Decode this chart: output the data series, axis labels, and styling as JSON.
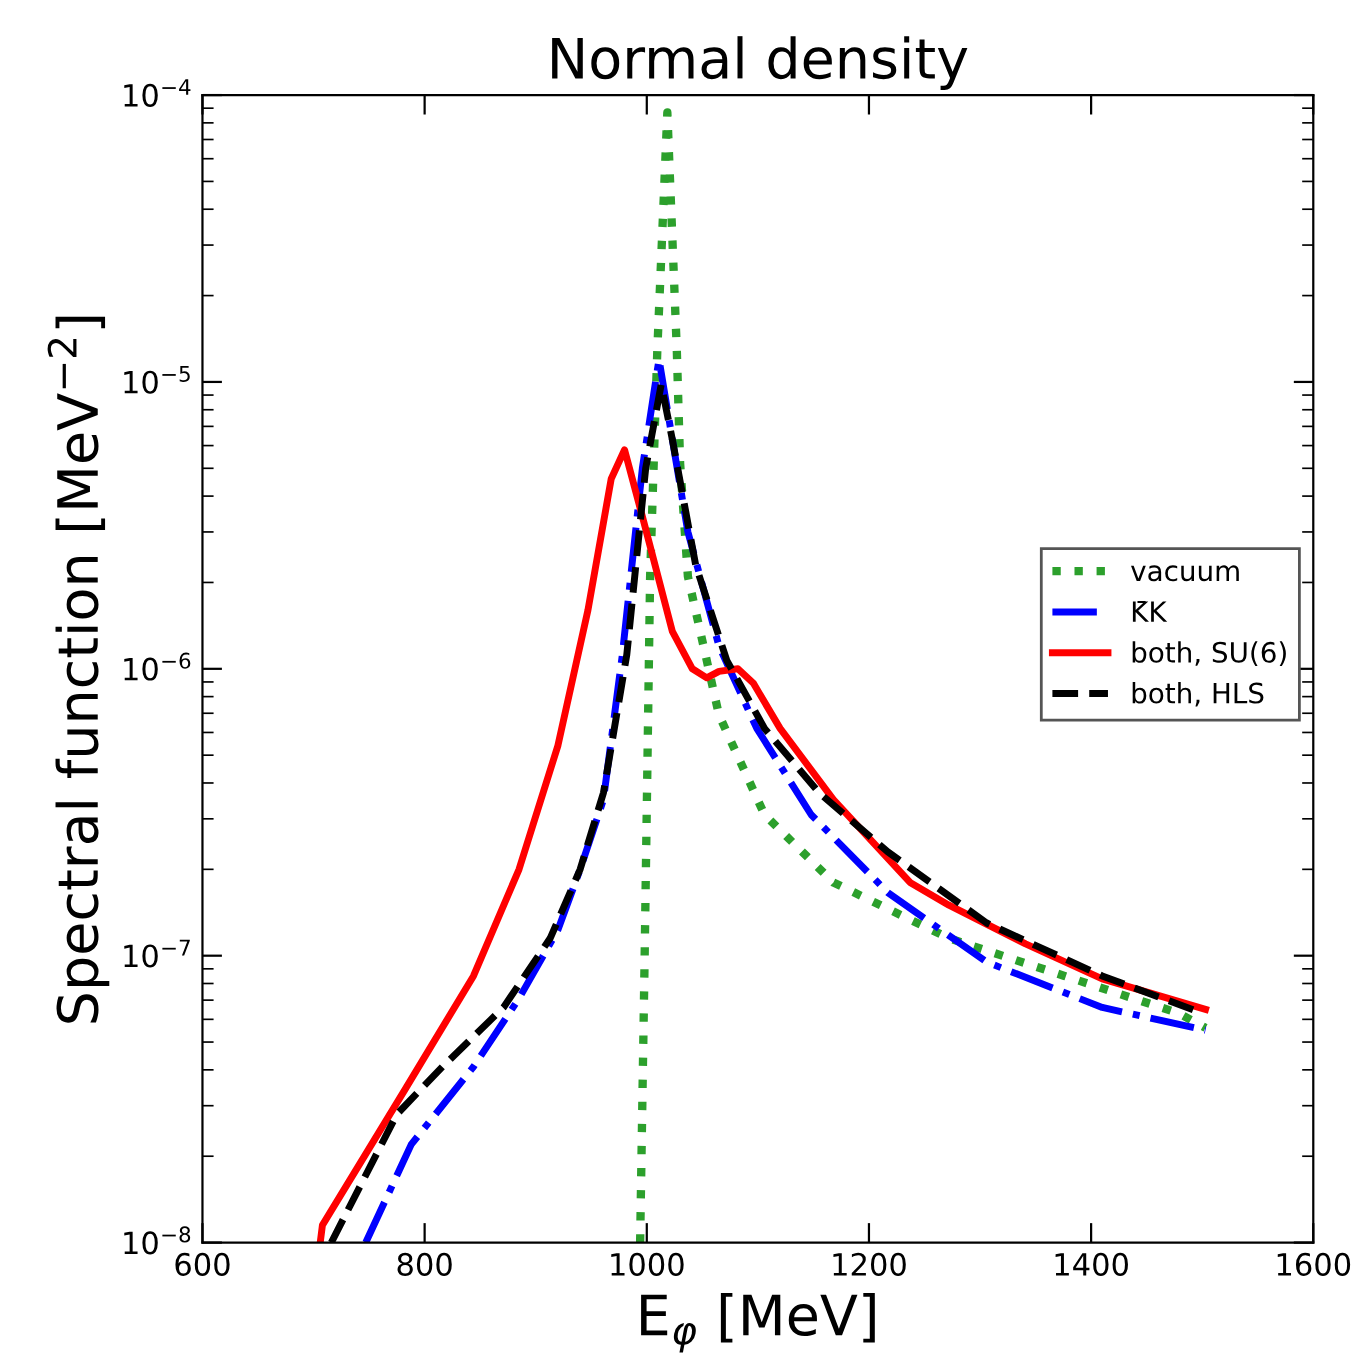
{
  "chart_data": {
    "type": "line",
    "title": "Normal density",
    "xlabel": "E$_{φ}$ [MeV]",
    "ylabel": "Spectral function [MeV$^{−2}$]",
    "log": "y",
    "grid": false,
    "legend": "right",
    "marker": "none",
    "xlim": [
      600,
      1600
    ],
    "xticks": [
      600,
      800,
      1000,
      1200,
      1400,
      1600
    ],
    "ylim": [
      1e-08,
      0.0001
    ],
    "yticks": [
      {
        "value": 1e-08,
        "label": "10$^{−8}$"
      },
      {
        "value": 1e-07,
        "label": "10$^{−7}$"
      },
      {
        "value": 1e-06,
        "label": "10$^{−6}$"
      },
      {
        "value": 1e-05,
        "label": "10$^{−5}$"
      },
      {
        "value": 0.0001,
        "label": "10$^{−4}$"
      }
    ],
    "series": [
      {
        "name": "vacuum",
        "color": "#2ca02c",
        "line_style": "dotted",
        "x": [
          994,
          998,
          1003,
          1009.5,
          1018.5,
          1027,
          1030,
          1037,
          1065,
          1106,
          1168,
          1272,
          1376,
          1479,
          1503
        ],
        "values": [
          1e-08,
          9.5e-08,
          2.1e-06,
          1.3e-05,
          8.7e-05,
          1.3e-05,
          5.2e-06,
          2.1e-06,
          6.9e-07,
          3.1e-07,
          1.8e-07,
          1.15e-07,
          8.5e-08,
          6.3e-08,
          5.6e-08
        ]
      },
      {
        "name": "K̄K",
        "color": "#0000ff",
        "line_style": "dashdot",
        "x": [
          747,
          788,
          844,
          885,
          920,
          940,
          961,
          978,
          996,
          1011,
          1023,
          1037,
          1065,
          1099,
          1148,
          1217,
          1306,
          1410,
          1503
        ],
        "values": [
          1e-08,
          2.2e-08,
          4.1e-08,
          7.1e-08,
          1.23e-07,
          2e-07,
          3.5e-07,
          1.12e-06,
          5e-06,
          1.2e-05,
          6.3e-06,
          3e-06,
          1.2e-06,
          6.2e-07,
          3.1e-07,
          1.66e-07,
          9.5e-08,
          6.6e-08,
          5.5e-08
        ]
      },
      {
        "name": "both, SU(6)",
        "color": "#ff0000",
        "line_style": "solid",
        "x": [
          706,
          708,
          782,
          844,
          885,
          920,
          947,
          968,
          980,
          996,
          1023,
          1041,
          1054,
          1065,
          1082,
          1096,
          1120,
          1168,
          1237,
          1272,
          1341,
          1410,
          1503
        ],
        "values": [
          1e-08,
          1.15e-08,
          3.4e-08,
          8.5e-08,
          2e-07,
          5.4e-07,
          1.6e-06,
          4.6e-06,
          5.8e-06,
          3.4e-06,
          1.35e-06,
          1e-06,
          9.3e-07,
          9.8e-07,
          1e-06,
          8.9e-07,
          6.2e-07,
          3.5e-07,
          1.8e-07,
          1.5e-07,
          1.1e-07,
          8.3e-08,
          6.5e-08
        ]
      },
      {
        "name": "both, HLS",
        "color": "#000000",
        "line_style": "dashed",
        "x": [
          716,
          775,
          816,
          871,
          913,
          940,
          961,
          982,
          999,
          1013,
          1023,
          1044,
          1072,
          1106,
          1155,
          1217,
          1306,
          1410,
          1500
        ],
        "values": [
          1e-08,
          2.8e-08,
          4.1e-08,
          6.6e-08,
          1.15e-07,
          2e-07,
          3.7e-07,
          1.12e-06,
          5e-06,
          9.8e-06,
          6.3e-06,
          2.3e-06,
          1.07e-06,
          6.2e-07,
          3.7e-07,
          2.3e-07,
          1.3e-07,
          8.5e-08,
          6.3e-08
        ]
      }
    ]
  }
}
